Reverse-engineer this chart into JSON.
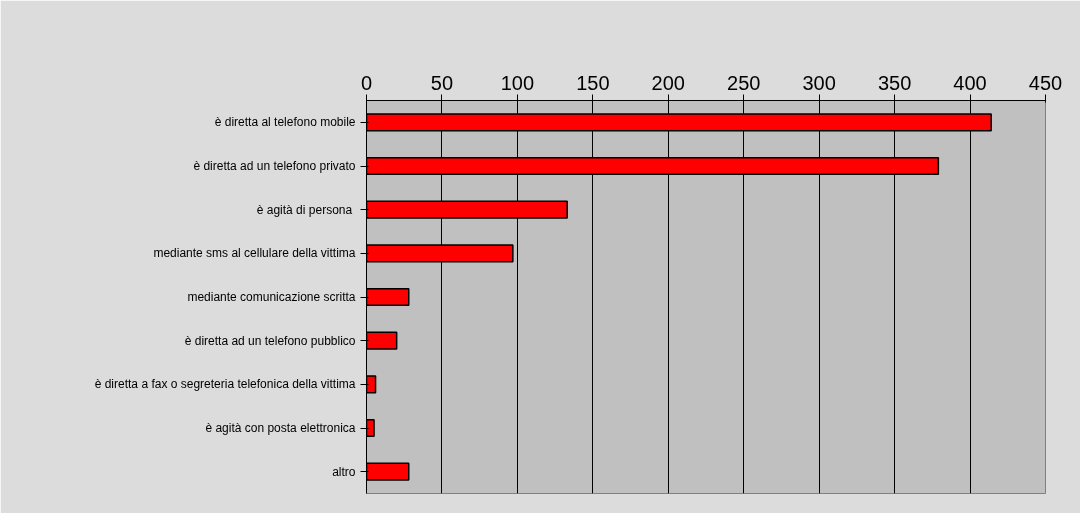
{
  "chart_data": {
    "type": "bar",
    "orientation": "horizontal",
    "categories": [
      "è diretta al telefono mobile",
      "è diretta ad un telefono privato",
      "è  agità di persona",
      "mediante sms al cellulare della vittima",
      "mediante comunicazione scritta",
      "è diretta ad un telefono pubblico",
      "è diretta a fax o segreteria telefonica della vittima",
      "è agità con posta elettronica",
      "altro"
    ],
    "values": [
      414,
      379,
      133,
      97,
      28,
      20,
      6,
      5,
      28
    ],
    "color": "#ff0000",
    "xlim": [
      0,
      450
    ],
    "xticks": [
      0,
      50,
      100,
      150,
      200,
      250,
      300,
      350,
      400,
      450
    ],
    "grid": "x"
  }
}
